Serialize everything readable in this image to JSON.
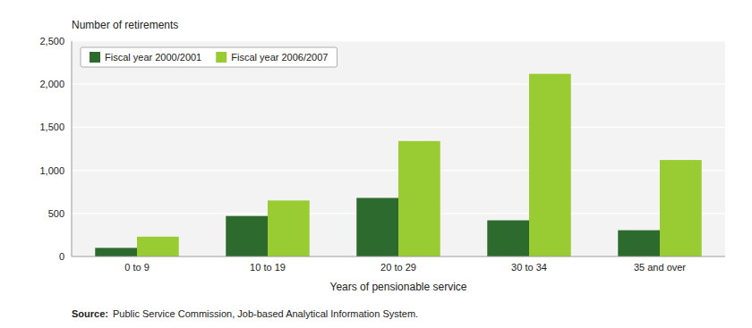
{
  "chart_data": {
    "type": "bar",
    "categories": [
      "0 to 9",
      "10 to 19",
      "20 to 29",
      "30 to 34",
      "35 and over"
    ],
    "series": [
      {
        "name": "Fiscal year 2000/2001",
        "color": "#2d6a2d",
        "values": [
          100,
          470,
          680,
          420,
          305
        ]
      },
      {
        "name": "Fiscal year 2006/2007",
        "color": "#99cc33",
        "values": [
          230,
          650,
          1340,
          2120,
          1120
        ]
      }
    ],
    "xlabel": "Years of pensionable service",
    "ylabel": "Number of retirements",
    "annotations": [
      "Source:",
      "Public Service Commission, Job-based Analytical Information System."
    ],
    "ylim": [
      0,
      2500
    ],
    "yticks": [
      0,
      500,
      {
        "value": 1000,
        "label": "1,000"
      },
      {
        "value": 1500,
        "label": "1,500"
      },
      {
        "value": 2000,
        "label": "2,000"
      },
      {
        "value": 2500,
        "label": "2,500"
      }
    ],
    "grid": true,
    "legend": "upper-left"
  }
}
